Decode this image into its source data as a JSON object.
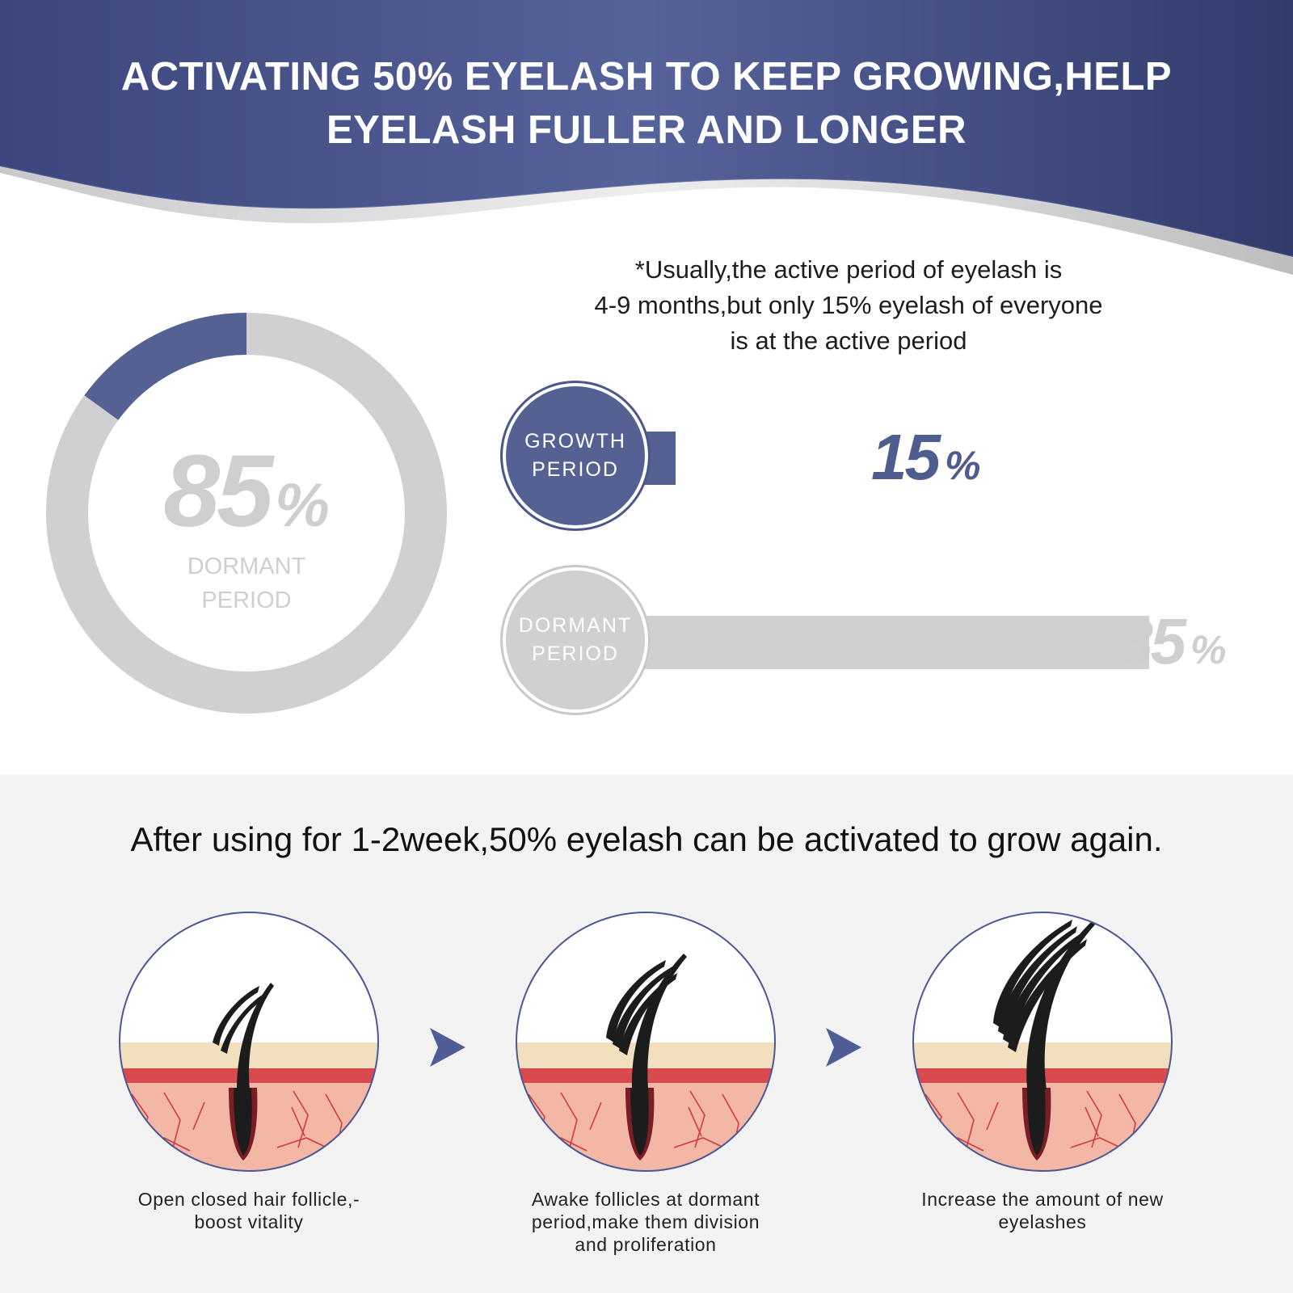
{
  "header": {
    "title_line1": "ACTIVATING 50% EYELASH TO KEEP GROWING,HELP",
    "title_line2": "EYELASH FULLER AND LONGER"
  },
  "note": {
    "line1": "*Usually,the active period of eyelash is",
    "line2": "4-9 months,but only 15% eyelash of everyone",
    "line3": "is at the active period"
  },
  "donut": {
    "value": "85",
    "unit": "%",
    "label_line1": "DORMANT",
    "label_line2": "PERIOD",
    "growth_fraction": 0.15,
    "dormant_fraction": 0.85
  },
  "bars": [
    {
      "label_line1": "GROWTH",
      "label_line2": "PERIOD",
      "value": "15",
      "unit": "%",
      "fraction": 0.15
    },
    {
      "label_line1": "DORMANT",
      "label_line2": "PERIOD",
      "value": "85",
      "unit": "%",
      "fraction": 0.85
    }
  ],
  "bottom": {
    "heading": "After using for 1-2week,50% eyelash can be activated to grow again.",
    "steps": [
      {
        "caption_line1": "Open closed hair follicle,-",
        "caption_line2": "boost vitality",
        "caption_line3": ""
      },
      {
        "caption_line1": "Awake follicles at dormant",
        "caption_line2": "period,make them division",
        "caption_line3": "and proliferation"
      },
      {
        "caption_line1": "Increase the amount of new",
        "caption_line2": "eyelashes",
        "caption_line3": ""
      }
    ]
  },
  "colors": {
    "accent": "#546192",
    "banner": "#3d477c",
    "inactive": "#d0d0d2",
    "skin": "#f2dfbf",
    "dermis": "#f2b7a5",
    "blood_line": "#c8323a"
  },
  "icons": [
    "follicle-1-hair-illustration",
    "follicle-3-hairs-illustration",
    "follicle-5-hairs-illustration",
    "step-arrow-icon"
  ]
}
